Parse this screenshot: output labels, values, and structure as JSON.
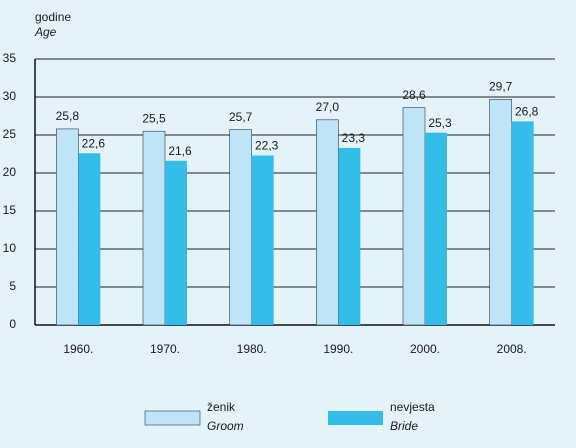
{
  "chart_data": {
    "type": "bar",
    "y_label": "godine",
    "y_label_en": "Age",
    "categories": [
      "1960.",
      "1970.",
      "1980.",
      "1990.",
      "2000.",
      "2008."
    ],
    "series": [
      {
        "name": "ženik",
        "name_en": "Groom",
        "color": "#bfe4f7",
        "values": [
          25.8,
          25.5,
          25.7,
          27.0,
          28.6,
          29.7
        ],
        "value_labels": [
          "25,8",
          "25,5",
          "25,7",
          "27,0",
          "28,6",
          "29,7"
        ]
      },
      {
        "name": "nevjesta",
        "name_en": "Bride",
        "color": "#35bdea",
        "values": [
          22.6,
          21.6,
          22.3,
          23.3,
          25.3,
          26.8
        ],
        "value_labels": [
          "22,6",
          "21,6",
          "22,3",
          "23,3",
          "25,3",
          "26,8"
        ]
      }
    ],
    "ylim": [
      0,
      35
    ],
    "yticks": [
      0,
      5,
      10,
      15,
      20,
      25,
      30,
      35
    ],
    "grid": true
  }
}
